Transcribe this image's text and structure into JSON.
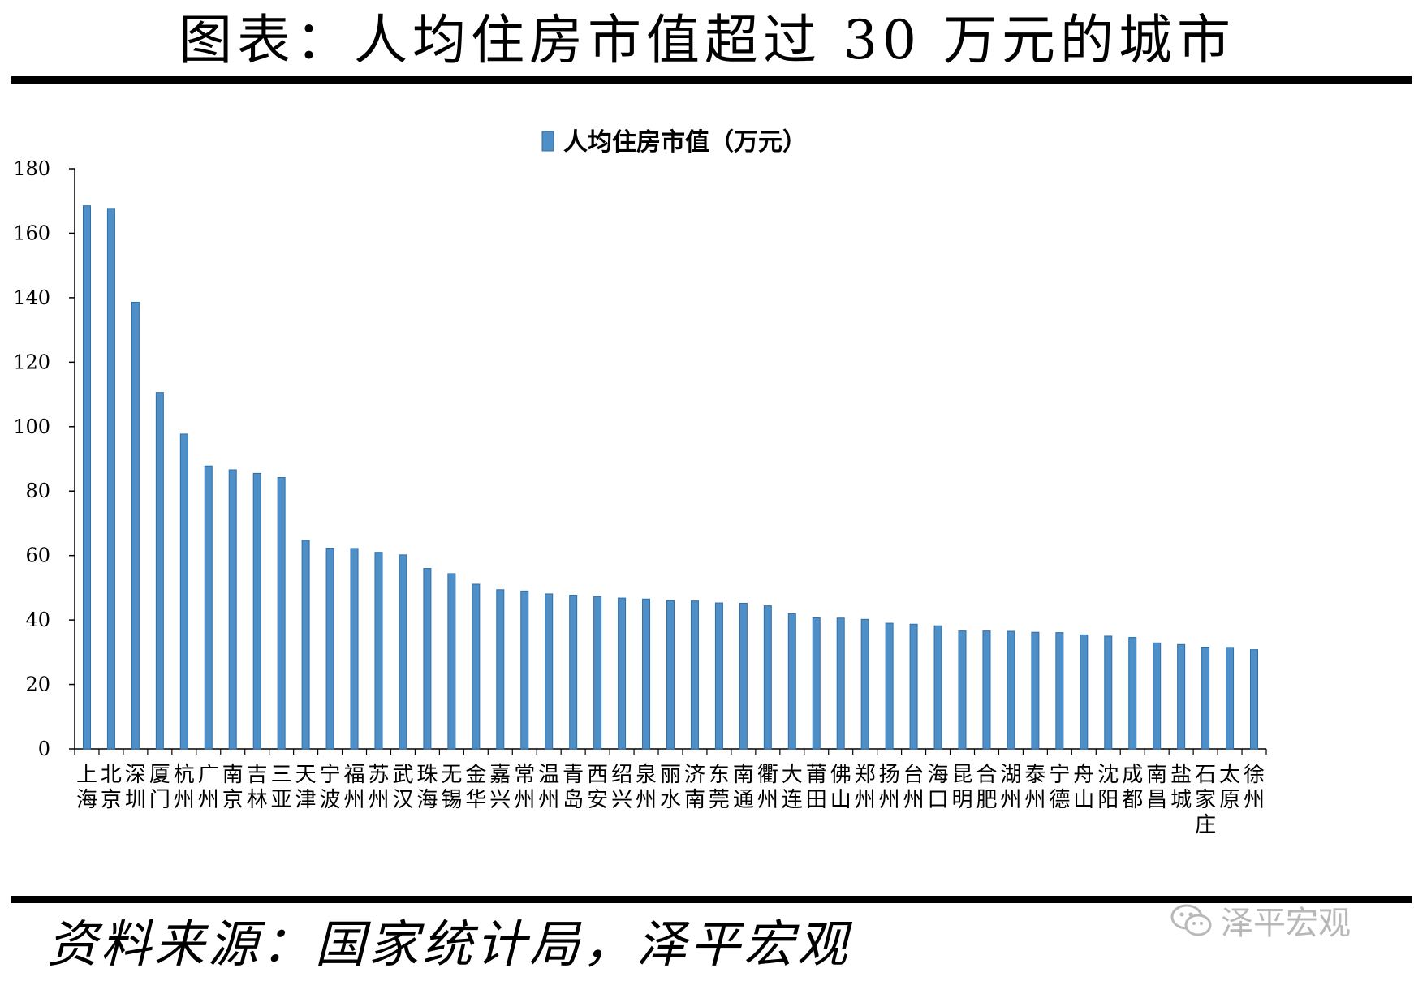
{
  "title": "图表：人均住房市值超过 30 万元的城市",
  "source": "资料来源：国家统计局，泽平宏观",
  "watermark": {
    "text": "泽平宏观",
    "icon": "wechat-icon"
  },
  "colors": {
    "bar_fill": "#4f8fc8",
    "bar_edge": "#2f6ea8",
    "axis": "#000000",
    "watermark": "#b8b8b8"
  },
  "chart_data": {
    "type": "bar",
    "title": "",
    "xlabel": "",
    "ylabel": "",
    "ylim": [
      0,
      180
    ],
    "yticks": [
      0,
      20,
      40,
      60,
      80,
      100,
      120,
      140,
      160,
      180
    ],
    "legend": {
      "position": "top-center"
    },
    "grid": false,
    "categories": [
      "上海",
      "北京",
      "深圳",
      "厦门",
      "杭州",
      "广州",
      "南京",
      "吉林",
      "三亚",
      "天津",
      "宁波",
      "福州",
      "苏州",
      "武汉",
      "珠海",
      "无锡",
      "金华",
      "嘉兴",
      "常州",
      "温州",
      "青岛",
      "西安",
      "绍兴",
      "泉州",
      "丽水",
      "济南",
      "东莞",
      "南通",
      "衢州",
      "大连",
      "莆田",
      "佛山",
      "郑州",
      "扬州",
      "台州",
      "海口",
      "昆明",
      "合肥",
      "湖州",
      "泰州",
      "宁德",
      "舟山",
      "沈阳",
      "成都",
      "南昌",
      "盐城",
      "石家庄",
      "太原",
      "徐州"
    ],
    "series": [
      {
        "name": "人均住房市值（万元）",
        "values": [
          168.5,
          167.7,
          138.6,
          110.6,
          97.7,
          87.8,
          86.6,
          85.5,
          84.2,
          64.7,
          62.3,
          62.2,
          61.0,
          60.2,
          56.0,
          54.4,
          51.1,
          49.4,
          49.0,
          48.1,
          47.7,
          47.3,
          46.8,
          46.5,
          46.0,
          45.9,
          45.3,
          45.2,
          44.4,
          42.0,
          40.7,
          40.6,
          40.2,
          39.0,
          38.7,
          38.2,
          36.6,
          36.6,
          36.5,
          36.2,
          36.1,
          35.4,
          35.0,
          34.6,
          32.9,
          32.4,
          31.6,
          31.5,
          30.8
        ]
      }
    ]
  }
}
